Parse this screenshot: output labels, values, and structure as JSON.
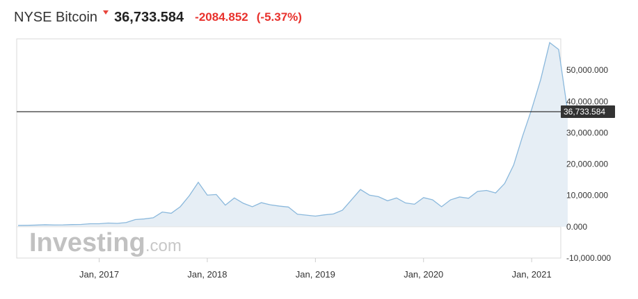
{
  "header": {
    "name": "NYSE Bitcoin",
    "price": "36,733.584",
    "change": "-2084.852",
    "change_pct": "(-5.37%)",
    "direction_icon": "down-arrow-icon",
    "change_color": "#e8312c"
  },
  "watermark": {
    "brand": "Investing",
    "suffix": ".com"
  },
  "chart_data": {
    "type": "area",
    "x": [
      "2016-04",
      "2016-05",
      "2016-06",
      "2016-07",
      "2016-08",
      "2016-09",
      "2016-10",
      "2016-11",
      "2016-12",
      "2017-01",
      "2017-02",
      "2017-03",
      "2017-04",
      "2017-05",
      "2017-06",
      "2017-07",
      "2017-08",
      "2017-09",
      "2017-10",
      "2017-11",
      "2017-12",
      "2018-01",
      "2018-02",
      "2018-03",
      "2018-04",
      "2018-05",
      "2018-06",
      "2018-07",
      "2018-08",
      "2018-09",
      "2018-10",
      "2018-11",
      "2018-12",
      "2019-01",
      "2019-02",
      "2019-03",
      "2019-04",
      "2019-05",
      "2019-06",
      "2019-07",
      "2019-08",
      "2019-09",
      "2019-10",
      "2019-11",
      "2019-12",
      "2020-01",
      "2020-02",
      "2020-03",
      "2020-04",
      "2020-05",
      "2020-06",
      "2020-07",
      "2020-08",
      "2020-09",
      "2020-10",
      "2020-11",
      "2020-12",
      "2021-01",
      "2021-02",
      "2021-03",
      "2021-04",
      "2021-05"
    ],
    "values": [
      420,
      450,
      530,
      650,
      580,
      600,
      700,
      740,
      970,
      960,
      1190,
      1070,
      1350,
      2300,
      2500,
      2870,
      4700,
      4300,
      6400,
      9900,
      14200,
      10100,
      10300,
      6900,
      9200,
      7500,
      6400,
      7700,
      7000,
      6600,
      6300,
      4000,
      3700,
      3400,
      3800,
      4100,
      5300,
      8600,
      11900,
      10100,
      9600,
      8300,
      9200,
      7600,
      7200,
      9300,
      8600,
      6400,
      8600,
      9500,
      9100,
      11300,
      11600,
      10800,
      13800,
      19700,
      29000,
      37500,
      47000,
      58800,
      56600,
      36733.584
    ],
    "ylim": [
      -10000,
      60000
    ],
    "yticks": [
      "-10,000.000",
      "0.000",
      "10,000.000",
      "20,000.000",
      "30,000.000",
      "40,000.000",
      "50,000.000"
    ],
    "ytick_values": [
      -10000,
      0,
      10000,
      20000,
      30000,
      40000,
      50000
    ],
    "xticks": [
      "Jan, 2017",
      "Jan, 2018",
      "Jan, 2019",
      "Jan, 2020",
      "Jan, 2021"
    ],
    "xtick_dates": [
      "2017-01",
      "2018-01",
      "2019-01",
      "2020-01",
      "2021-01"
    ],
    "current_value": 36733.584,
    "current_label": "36,733.584",
    "line_color": "#8ab8dc",
    "fill_color": "#e6eef5",
    "grid": false
  }
}
